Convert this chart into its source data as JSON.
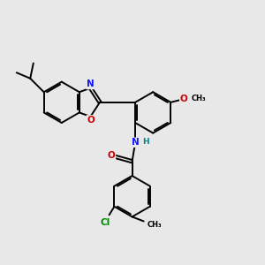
{
  "bg": "#e8e8e8",
  "bc": "#000000",
  "lw": 1.4,
  "dbo": 0.06,
  "colors": {
    "N": "#1414ff",
    "O": "#cc0000",
    "Cl": "#008800",
    "H": "#008888"
  },
  "fs": 7.5,
  "figsize": [
    3.0,
    3.0
  ],
  "dpi": 100
}
